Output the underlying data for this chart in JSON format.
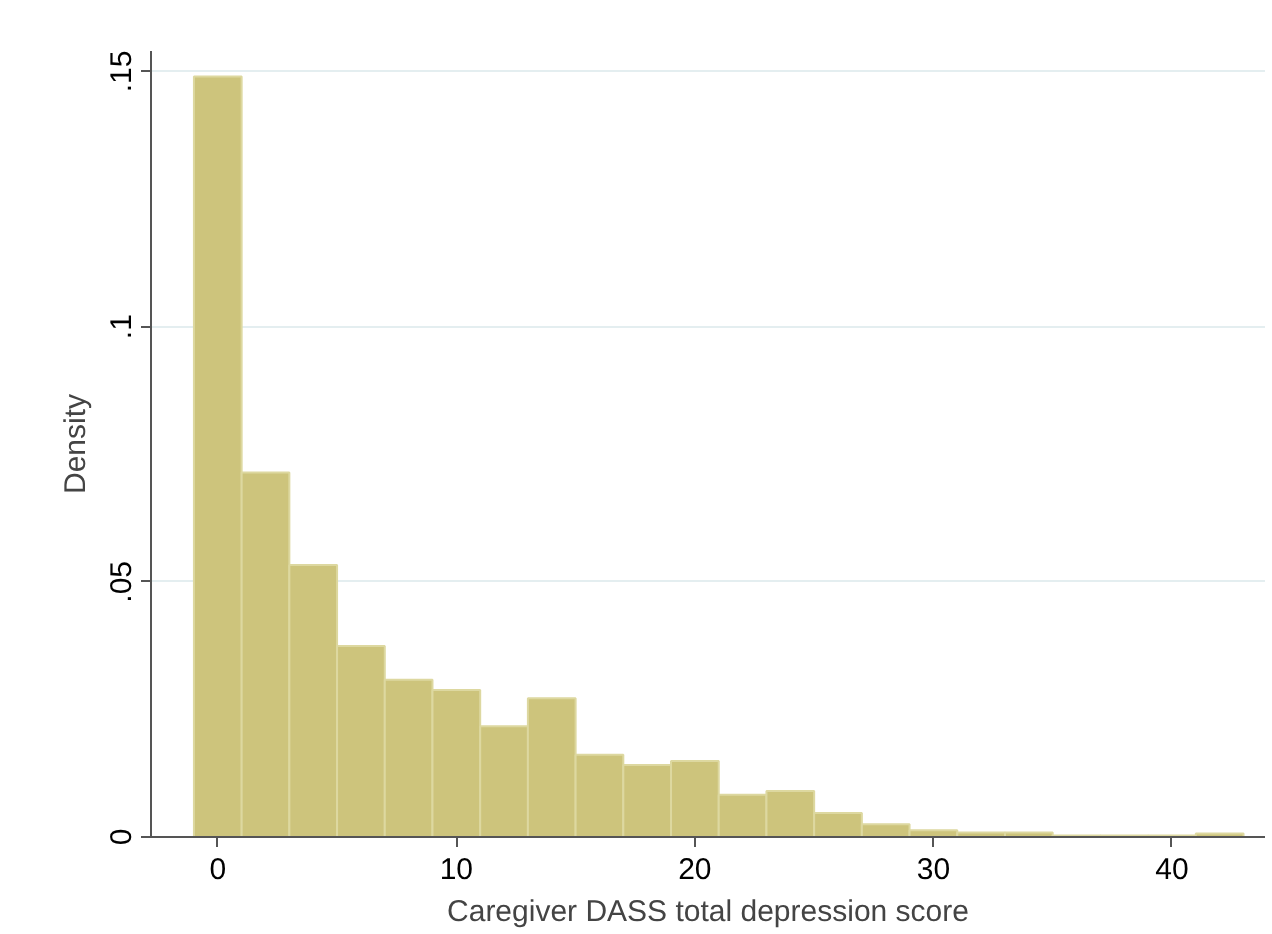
{
  "chart_data": {
    "type": "histogram",
    "xlabel": "Caregiver DASS total depression score",
    "ylabel": "Density",
    "bins": [
      -1,
      1,
      3,
      5,
      7,
      9,
      11,
      13,
      15,
      17,
      19,
      21,
      23,
      25,
      27,
      29,
      31,
      33,
      35,
      37,
      39,
      41,
      43
    ],
    "values": [
      0.149,
      0.0714,
      0.0533,
      0.0374,
      0.0308,
      0.0288,
      0.0217,
      0.0272,
      0.0161,
      0.0141,
      0.0149,
      0.0083,
      0.009,
      0.0047,
      0.0025,
      0.0013,
      0.0009,
      0.0009,
      0.0003,
      0.0003,
      0.0003,
      0.0007
    ],
    "color": "#cdc47c",
    "xlim": [
      -2.8,
      43.9
    ],
    "ylim": [
      0,
      0.154
    ],
    "xticks": [
      0,
      10,
      20,
      30,
      40
    ],
    "yticks": [
      {
        "value": 0,
        "label": "0"
      },
      {
        "value": 0.05,
        "label": ".05"
      },
      {
        "value": 0.1,
        "label": ".1"
      },
      {
        "value": 0.15,
        "label": ".15"
      }
    ],
    "grid": "y"
  }
}
